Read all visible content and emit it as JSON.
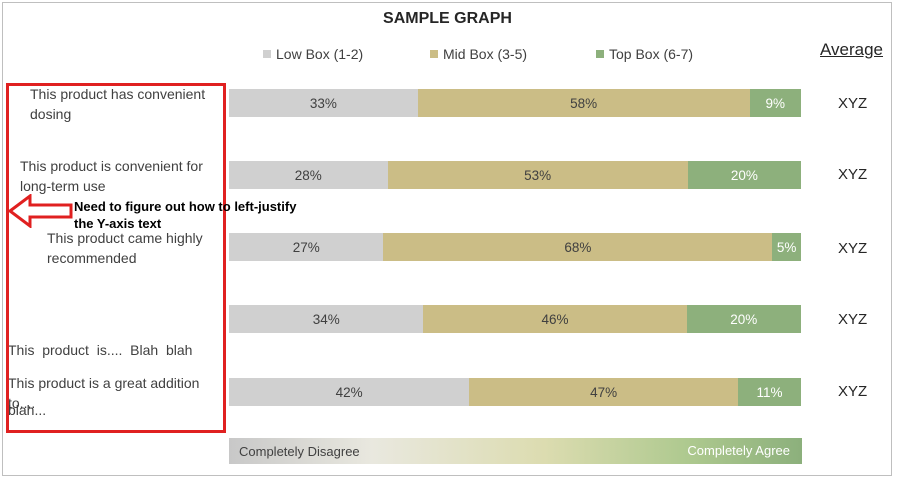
{
  "chart_data": {
    "type": "bar",
    "stacked": true,
    "orientation": "horizontal",
    "title": "SAMPLE GRAPH",
    "categories": [
      "This product has convenient dosing",
      "This product is convenient for long-term use",
      "This product came highly recommended",
      "This product is.... Blah blah blah...",
      "This product is a great addition to...."
    ],
    "series": [
      {
        "name": "Low Box (1-2)",
        "color": "#d0d0d0",
        "values": [
          33,
          28,
          27,
          34,
          42
        ]
      },
      {
        "name": "Mid Box (3-5)",
        "color": "#cbbd86",
        "values": [
          58,
          53,
          68,
          46,
          47
        ]
      },
      {
        "name": "Top Box (6-7)",
        "color": "#8db07c",
        "values": [
          9,
          20,
          5,
          20,
          11
        ]
      }
    ],
    "value_labels": [
      [
        "33%",
        "58%",
        "9%"
      ],
      [
        "28%",
        "53%",
        "20%"
      ],
      [
        "27%",
        "68%",
        "5%"
      ],
      [
        "34%",
        "46%",
        "20%"
      ],
      [
        "42%",
        "47%",
        "11%"
      ]
    ],
    "legend_position": "top",
    "xlim": [
      0,
      100
    ],
    "grid": false
  },
  "average": {
    "header": "Average",
    "values": [
      "XYZ",
      "XYZ",
      "XYZ",
      "XYZ",
      "XYZ"
    ]
  },
  "labels": [
    [
      "This product has convenient",
      "dosing"
    ],
    [
      "This product is convenient for",
      "long-term use"
    ],
    [
      "This product came highly",
      "recommended"
    ],
    [
      "This  product  is....  Blah  blah",
      "blah..."
    ],
    [
      "This product is a great addition",
      "to...."
    ]
  ],
  "annotation": {
    "line1": "Need to figure out how to left-justify",
    "line2": "the Y-axis text",
    "arrow_color": "#e02020"
  },
  "scale": {
    "left_label": "Completely Disagree",
    "right_label": "Completely Agree"
  }
}
